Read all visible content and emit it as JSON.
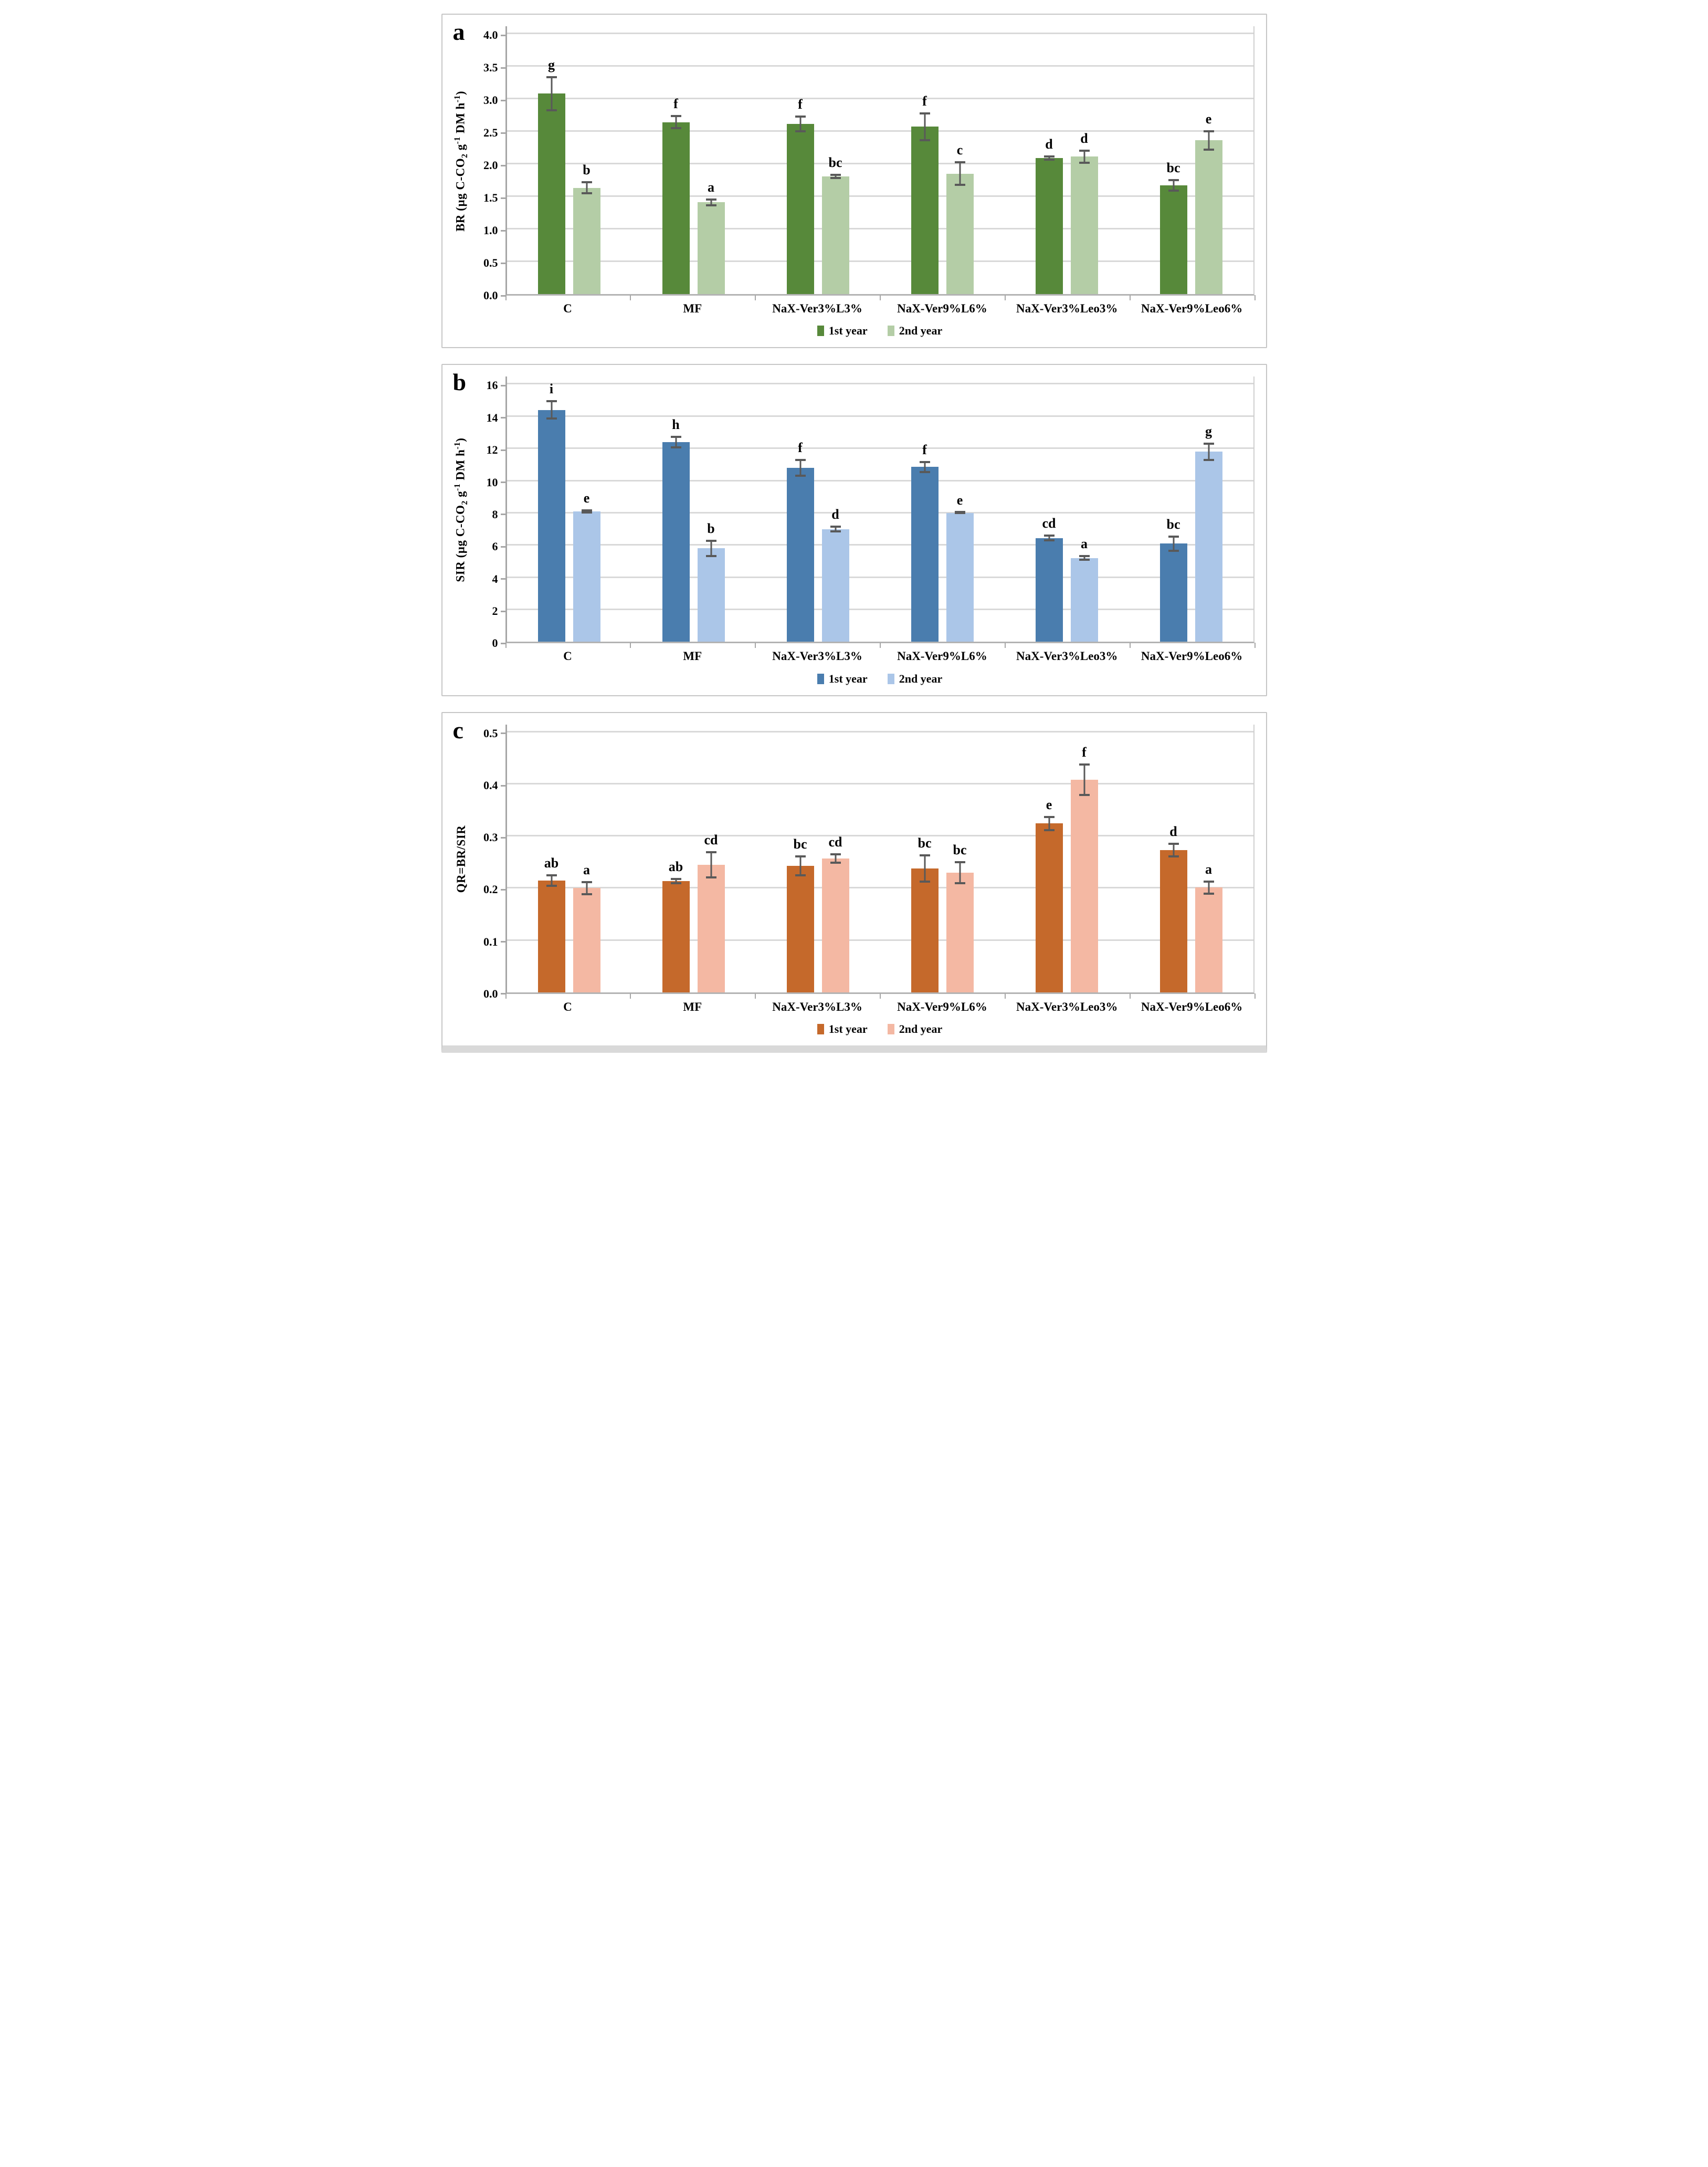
{
  "styles": {
    "error_bar_color": "#595959",
    "gridline_color": "#d9d9d9",
    "axis_color": "#a6a6a6",
    "panel_border_color": "#c6c6c6",
    "background": "#ffffff"
  },
  "chart_data": [
    {
      "id": "a",
      "type": "bar",
      "panel_letter": "a",
      "ylabel_plain": "BR (µg C-CO2 g-1 DM h-1)",
      "ylabel_segments": [
        {
          "t": "BR (µg C-CO"
        },
        {
          "sub": "2"
        },
        {
          "t": " g"
        },
        {
          "sup": "-1"
        },
        {
          "t": " DM h"
        },
        {
          "sup": "-1"
        },
        {
          "t": ")"
        }
      ],
      "ylim": [
        0,
        4
      ],
      "ytick_step": 0.5,
      "ytick_labels": [
        "0.0",
        "0.5",
        "1.0",
        "1.5",
        "2.0",
        "2.5",
        "3.0",
        "3.5",
        "4.0"
      ],
      "grid": true,
      "legend_position": "bottom",
      "categories": [
        "C",
        "MF",
        "NaX-Ver3%L3%",
        "NaX-Ver9%L6%",
        "NaX-Ver3%Leo3%",
        "NaX-Ver9%Leo6%"
      ],
      "series": [
        {
          "name": "1st year",
          "color": "#57893a",
          "values": [
            3.08,
            2.64,
            2.61,
            2.57,
            2.09,
            1.67
          ],
          "errors": [
            0.27,
            0.11,
            0.13,
            0.22,
            0.04,
            0.1
          ],
          "sig_letters": [
            "g",
            "f",
            "f",
            "f",
            "d",
            "bc"
          ]
        },
        {
          "name": "2nd year",
          "color": "#b4cda6",
          "values": [
            1.63,
            1.41,
            1.81,
            1.85,
            2.11,
            2.36
          ],
          "errors": [
            0.1,
            0.06,
            0.04,
            0.19,
            0.11,
            0.16
          ],
          "sig_letters": [
            "b",
            "a",
            "bc",
            "c",
            "d",
            "e"
          ]
        }
      ]
    },
    {
      "id": "b",
      "type": "bar",
      "panel_letter": "b",
      "ylabel_plain": "SIR (µg C-CO2 g-1 DM h-1)",
      "ylabel_segments": [
        {
          "t": "SIR (µg C-CO"
        },
        {
          "sub": "2"
        },
        {
          "t": " g"
        },
        {
          "sup": "-1"
        },
        {
          "t": " DM h"
        },
        {
          "sup": "-1"
        },
        {
          "t": ")"
        }
      ],
      "ylim": [
        0,
        16
      ],
      "ytick_step": 2,
      "ytick_labels": [
        "0",
        "2",
        "4",
        "6",
        "8",
        "10",
        "12",
        "14",
        "16"
      ],
      "grid": true,
      "legend_position": "bottom",
      "categories": [
        "C",
        "MF",
        "NaX-Ver3%L3%",
        "NaX-Ver9%L6%",
        "NaX-Ver3%Leo3%",
        "NaX-Ver9%Leo6%"
      ],
      "series": [
        {
          "name": "1st year",
          "color": "#4a7dae",
          "values": [
            14.4,
            12.4,
            10.8,
            10.85,
            6.45,
            6.1
          ],
          "errors": [
            0.6,
            0.4,
            0.55,
            0.38,
            0.2,
            0.5
          ],
          "sig_letters": [
            "i",
            "h",
            "f",
            "f",
            "cd",
            "bc"
          ]
        },
        {
          "name": "2nd year",
          "color": "#abc6e8",
          "values": [
            8.1,
            5.8,
            7.0,
            8.0,
            5.2,
            11.8
          ],
          "errors": [
            0.12,
            0.55,
            0.22,
            0.08,
            0.18,
            0.57
          ],
          "sig_letters": [
            "e",
            "b",
            "d",
            "e",
            "a",
            "g"
          ]
        }
      ]
    },
    {
      "id": "c",
      "type": "bar",
      "panel_letter": "c",
      "ylabel_plain": "QR=BR/SIR",
      "ylabel_segments": [
        {
          "t": "QR=BR/SIR"
        }
      ],
      "ylim": [
        0,
        0.5
      ],
      "ytick_step": 0.1,
      "ytick_labels": [
        "0.0",
        "0.1",
        "0.2",
        "0.3",
        "0.4",
        "0.5"
      ],
      "grid": true,
      "legend_position": "bottom",
      "categories": [
        "C",
        "MF",
        "NaX-Ver3%L3%",
        "NaX-Ver9%L6%",
        "NaX-Ver3%Leo3%",
        "NaX-Ver9%Leo6%"
      ],
      "series": [
        {
          "name": "1st year",
          "color": "#c5692b",
          "values": [
            0.215,
            0.214,
            0.243,
            0.238,
            0.324,
            0.273
          ],
          "errors": [
            0.012,
            0.006,
            0.02,
            0.027,
            0.015,
            0.014
          ],
          "sig_letters": [
            "ab",
            "ab",
            "bc",
            "bc",
            "e",
            "d"
          ]
        },
        {
          "name": "2nd year",
          "color": "#f4b8a3",
          "values": [
            0.2,
            0.245,
            0.257,
            0.23,
            0.408,
            0.201
          ],
          "errors": [
            0.014,
            0.026,
            0.01,
            0.022,
            0.031,
            0.014
          ],
          "sig_letters": [
            "a",
            "cd",
            "cd",
            "bc",
            "f",
            "a"
          ]
        }
      ]
    }
  ]
}
